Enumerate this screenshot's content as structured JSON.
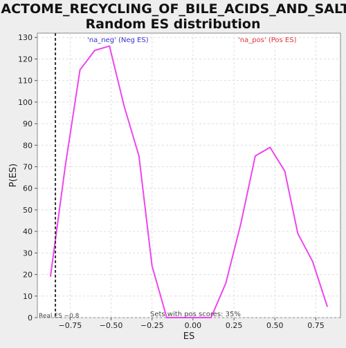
{
  "chart_data": {
    "type": "line",
    "title_line1": "REACTOME_RECYCLING_OF_BILE_ACIDS_AND_SALTS:",
    "title_line2": "Random ES distribution",
    "xlabel": "ES",
    "ylabel": "P(ES)",
    "xlim": [
      -0.95,
      0.9
    ],
    "ylim": [
      0,
      132
    ],
    "x_ticks": [
      -0.75,
      -0.5,
      -0.25,
      0.0,
      0.25,
      0.5,
      0.75
    ],
    "x_tick_labels": [
      "−0.75",
      "−0.50",
      "−0.25",
      "0.00",
      "0.25",
      "0.50",
      "0.75"
    ],
    "y_ticks": [
      0,
      10,
      20,
      30,
      40,
      50,
      60,
      70,
      80,
      90,
      100,
      110,
      120,
      130
    ],
    "grid": true,
    "line_color": "#ee44ee",
    "series": [
      {
        "x": [
          -0.87,
          -0.78,
          -0.69,
          -0.6,
          -0.51,
          -0.42,
          -0.33,
          -0.25,
          -0.16,
          -0.07,
          0.02,
          0.11,
          0.2,
          0.29,
          0.38,
          0.47,
          0.56,
          0.64,
          0.73,
          0.82
        ],
        "y": [
          19,
          70,
          115,
          124,
          126,
          98,
          75,
          24,
          0,
          0,
          0,
          0,
          16,
          43,
          75,
          79,
          68,
          39,
          26,
          5
        ]
      }
    ],
    "real_es": -0.84,
    "annotations": {
      "neg_label": "'na_neg' (Neg ES)",
      "neg_color": "#3333cc",
      "pos_label": "'na_pos' (Pos ES)",
      "pos_color": "#dd3333",
      "real_es_label": "Real ES −0.8",
      "sets_label": "Sets with pos scores: 35%"
    }
  }
}
